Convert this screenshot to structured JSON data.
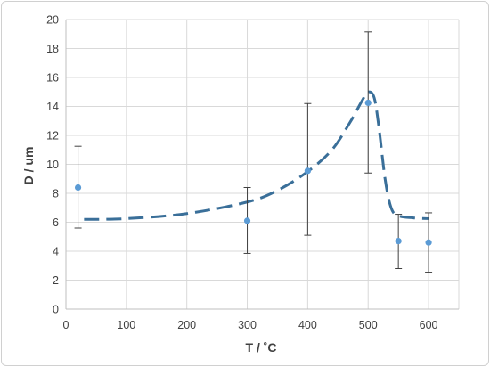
{
  "chart_data": {
    "type": "scatter",
    "title": "",
    "xlabel": "T / ˚C",
    "ylabel": "D / um",
    "xlim": [
      0,
      650
    ],
    "ylim": [
      0,
      20
    ],
    "x_ticks": [
      0,
      100,
      200,
      300,
      400,
      500,
      600
    ],
    "y_ticks": [
      0,
      2,
      4,
      6,
      8,
      10,
      12,
      14,
      16,
      18,
      20
    ],
    "grid": true,
    "legend": "none",
    "series": [
      {
        "points": [
          {
            "x": 20,
            "y": 8.4,
            "err_low": 5.6,
            "err_high": 11.25
          },
          {
            "x": 300,
            "y": 6.1,
            "err_low": 3.85,
            "err_high": 8.4
          },
          {
            "x": 400,
            "y": 9.55,
            "err_low": 5.1,
            "err_high": 14.2
          },
          {
            "x": 500,
            "y": 14.25,
            "err_low": 9.4,
            "err_high": 19.15
          },
          {
            "x": 550,
            "y": 4.7,
            "err_low": 2.8,
            "err_high": 6.55
          },
          {
            "x": 600,
            "y": 4.6,
            "err_low": 2.55,
            "err_high": 6.65
          }
        ],
        "color": "#5b9bd5"
      }
    ],
    "trendline": {
      "style": "dashed",
      "color": "#3a6f99",
      "points": [
        [
          30,
          6.2
        ],
        [
          100,
          6.25
        ],
        [
          200,
          6.6
        ],
        [
          300,
          7.4
        ],
        [
          350,
          8.2
        ],
        [
          400,
          9.5
        ],
        [
          440,
          11.0
        ],
        [
          470,
          12.9
        ],
        [
          490,
          14.4
        ],
        [
          500,
          15.0
        ],
        [
          510,
          14.6
        ],
        [
          518,
          12.5
        ],
        [
          528,
          9.0
        ],
        [
          538,
          7.0
        ],
        [
          550,
          6.45
        ],
        [
          575,
          6.3
        ],
        [
          600,
          6.25
        ]
      ]
    }
  }
}
